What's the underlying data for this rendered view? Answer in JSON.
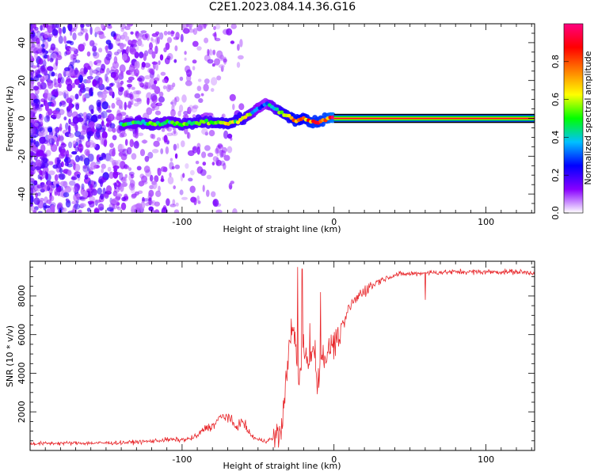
{
  "title": "C2E1.2023.084.14.36.G16",
  "colors": {
    "trace": "#e8282c",
    "axes": "#000000",
    "background": "#ffffff"
  },
  "chart_data": [
    {
      "type": "heatmap",
      "xlabel": "Height of straight line (km)",
      "ylabel": "Frequency (Hz)",
      "xlim": [
        -200,
        132
      ],
      "ylim": [
        -50,
        50
      ],
      "xticks": [
        -100,
        0,
        100
      ],
      "yticks": [
        -40,
        -20,
        0,
        20,
        40
      ],
      "colorbar": {
        "label": "Normalized spectral amplitude",
        "range": [
          0,
          1
        ],
        "ticks": [
          0.0,
          0.2,
          0.4,
          0.6,
          0.8
        ],
        "tick_labels": [
          "0.0",
          "0.2",
          "0.4",
          "0.6",
          "0.8"
        ],
        "colormap": [
          "#ffffff",
          "#8800ff",
          "#0000ff",
          "#00c0ff",
          "#00ff00",
          "#ffff00",
          "#ff8000",
          "#ff0000",
          "#ff0080"
        ]
      },
      "ridge": {
        "x": [
          -140,
          -130,
          -120,
          -110,
          -100,
          -90,
          -80,
          -70,
          -60,
          -50,
          -45,
          -40,
          -35,
          -30,
          -25,
          -20,
          -15,
          -10,
          -5,
          0,
          50,
          100,
          132
        ],
        "frequency": [
          -3,
          -2,
          -3,
          -2,
          -3,
          -2,
          -2,
          -3,
          0,
          5,
          8,
          6,
          3,
          1,
          -1,
          0,
          -2,
          -2,
          0,
          0,
          0,
          0,
          0
        ],
        "amplitude": [
          0.45,
          0.45,
          0.5,
          0.45,
          0.5,
          0.55,
          0.55,
          0.6,
          0.6,
          0.35,
          0.3,
          0.45,
          0.6,
          0.65,
          0.75,
          0.7,
          0.8,
          0.8,
          0.85,
          0.95,
          0.95,
          0.95,
          0.95
        ]
      }
    },
    {
      "type": "line",
      "xlabel": "Height of straight line (km)",
      "ylabel": "SNR (10 * v/v)",
      "xlim": [
        -200,
        132
      ],
      "ylim": [
        0,
        9800
      ],
      "xticks": [
        -100,
        0,
        100
      ],
      "yticks": [
        2000,
        4000,
        6000,
        8000
      ],
      "series": [
        {
          "x": [
            -200,
            -180,
            -160,
            -140,
            -120,
            -110,
            -100,
            -95,
            -90,
            -85,
            -80,
            -75,
            -70,
            -65,
            -60,
            -55,
            -50,
            -45,
            -40,
            -35,
            -32,
            -29,
            -26,
            -23,
            -20,
            -17,
            -14,
            -11,
            -8,
            -5,
            -2,
            0,
            5,
            10,
            15,
            20,
            30,
            40,
            60,
            80,
            100,
            120,
            132
          ],
          "y": [
            350,
            380,
            380,
            400,
            480,
            560,
            550,
            600,
            750,
            1150,
            1250,
            1700,
            1800,
            1200,
            1500,
            800,
            550,
            500,
            600,
            900,
            3200,
            6000,
            6200,
            3200,
            5500,
            4500,
            5500,
            3500,
            5000,
            4800,
            5500,
            5500,
            6200,
            7400,
            7900,
            8300,
            8800,
            9100,
            9200,
            9250,
            9250,
            9250,
            9200
          ]
        }
      ]
    }
  ]
}
